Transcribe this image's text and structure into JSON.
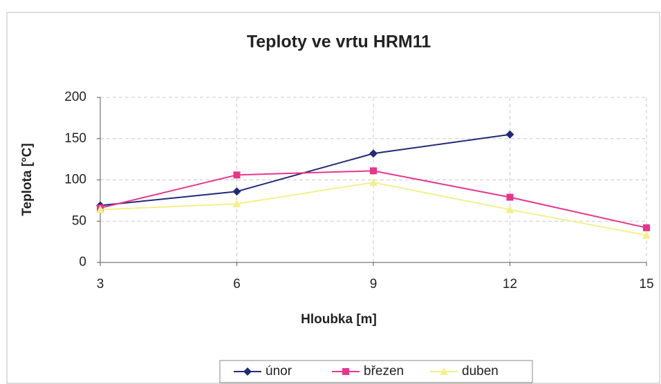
{
  "chart_data": {
    "type": "line",
    "title": "Teploty ve vrtu HRM11",
    "x_label": "Hloubka [m]",
    "y_label": "Teplota [°C]",
    "x": [
      3,
      6,
      9,
      12,
      15
    ],
    "series": [
      {
        "name": "únor",
        "color": "#1f2a78",
        "marker": "diamond",
        "values": [
          69,
          86,
          132,
          155,
          null
        ]
      },
      {
        "name": "březen",
        "color": "#e8358c",
        "marker": "square",
        "values": [
          66,
          106,
          111,
          79,
          42
        ]
      },
      {
        "name": "duben",
        "color": "#f3f08a",
        "marker": "triangle",
        "values": [
          64,
          71,
          97,
          64,
          33
        ]
      }
    ],
    "xlim": [
      3,
      15
    ],
    "xticks": [
      3,
      6,
      9,
      12,
      15
    ],
    "ylim": [
      0,
      200
    ],
    "yticks": [
      0,
      50,
      100,
      150,
      200
    ],
    "grid": true,
    "legend": "bottom"
  }
}
